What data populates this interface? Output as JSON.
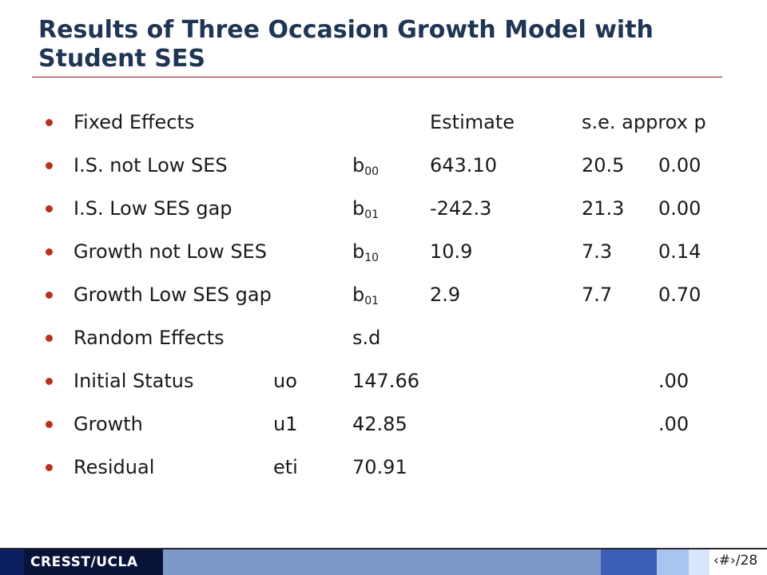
{
  "slide": {
    "title": "Results of Three Occasion Growth Model with Student SES",
    "page_number": "‹#›/28"
  },
  "header_row": {
    "label": "Fixed Effects",
    "estimate": "Estimate",
    "se_p": "s.e. approx p"
  },
  "fixed_effects": [
    {
      "label": "I.S. not Low SES",
      "coef": "b",
      "sub": "00",
      "estimate": "643.10",
      "se": "20.5",
      "p": "0.00"
    },
    {
      "label": "I.S. Low SES gap",
      "coef": "b",
      "sub": "01",
      "estimate": "-242.3",
      "se": "21.3",
      "p": "0.00"
    },
    {
      "label": "Growth not Low SES",
      "coef": "b",
      "sub": "10",
      "estimate": "10.9",
      "se": "7.3",
      "p": "0.14"
    },
    {
      "label": "Growth Low SES gap",
      "coef": "b",
      "sub": "01",
      "estimate": "2.9",
      "se": "7.7",
      "p": "0.70"
    }
  ],
  "random_header": {
    "label": "Random Effects",
    "sd": "s.d"
  },
  "random_effects": [
    {
      "label": "Initial Status",
      "term": "uo",
      "sd": "147.66",
      "p": ".00"
    },
    {
      "label": "Growth",
      "term": "u1",
      "sd": "42.85",
      "p": ".00"
    },
    {
      "label": "Residual",
      "term": "eti",
      "sd": "70.91",
      "p": ""
    }
  ],
  "footer": {
    "logo": "CRESST/UCLA"
  }
}
